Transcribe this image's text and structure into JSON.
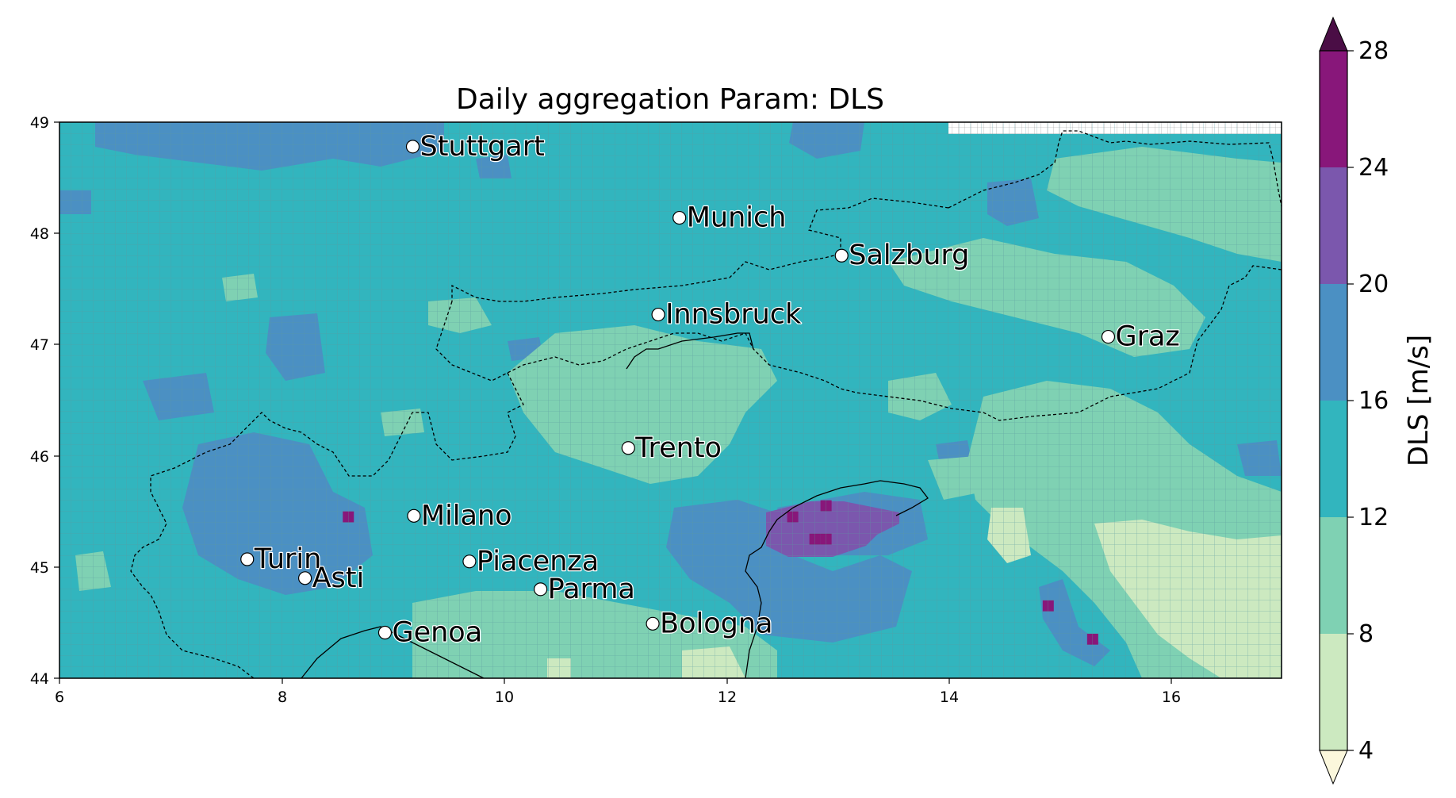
{
  "title": "Daily aggregation Param: DLS",
  "colorbar": {
    "label": "DLS  [m/s]",
    "ticks": [
      "4",
      "8",
      "12",
      "16",
      "20",
      "24",
      "28"
    ],
    "levels": [
      4,
      8,
      12,
      16,
      20,
      24,
      28
    ],
    "colors": [
      "#cce9c0",
      "#7fd1b3",
      "#32b5be",
      "#4b90c3",
      "#7b57ad",
      "#88177a"
    ],
    "under_color": "#fbf7dc",
    "over_color": "#4a0d45"
  },
  "axes": {
    "x_ticks": [
      "6",
      "8",
      "10",
      "12",
      "14",
      "16"
    ],
    "y_ticks": [
      "44",
      "45",
      "46",
      "47",
      "48",
      "49"
    ]
  },
  "map": {
    "lon_range": [
      6,
      17
    ],
    "lat_range": [
      44,
      49
    ],
    "cells": [
      {
        "lon": 12.6,
        "lat": 45.45,
        "value": 24.5
      },
      {
        "lon": 12.9,
        "lat": 45.55,
        "value": 24.5
      },
      {
        "lon": 12.8,
        "lat": 45.25,
        "value": 24.5
      },
      {
        "lon": 12.9,
        "lat": 45.25,
        "value": 24.5
      },
      {
        "lon": 8.6,
        "lat": 45.45,
        "value": 24.5
      },
      {
        "lon": 14.9,
        "lat": 44.65,
        "value": 24.5
      },
      {
        "lon": 15.3,
        "lat": 44.35,
        "value": 24.5
      }
    ]
  },
  "cities": [
    {
      "name": "Stuttgart",
      "lon": 9.18,
      "lat": 48.78
    },
    {
      "name": "Munich",
      "lon": 11.58,
      "lat": 48.14
    },
    {
      "name": "Salzburg",
      "lon": 13.04,
      "lat": 47.8
    },
    {
      "name": "Innsbruck",
      "lon": 11.39,
      "lat": 47.27
    },
    {
      "name": "Graz",
      "lon": 15.44,
      "lat": 47.07
    },
    {
      "name": "Trento",
      "lon": 11.12,
      "lat": 46.07
    },
    {
      "name": "Milano",
      "lon": 9.19,
      "lat": 45.46
    },
    {
      "name": "Turin",
      "lon": 7.69,
      "lat": 45.07
    },
    {
      "name": "Asti",
      "lon": 8.21,
      "lat": 44.9
    },
    {
      "name": "Piacenza",
      "lon": 9.69,
      "lat": 45.05
    },
    {
      "name": "Parma",
      "lon": 10.33,
      "lat": 44.8
    },
    {
      "name": "Genoa",
      "lon": 8.93,
      "lat": 44.41
    },
    {
      "name": "Bologna",
      "lon": 11.34,
      "lat": 44.49
    }
  ]
}
